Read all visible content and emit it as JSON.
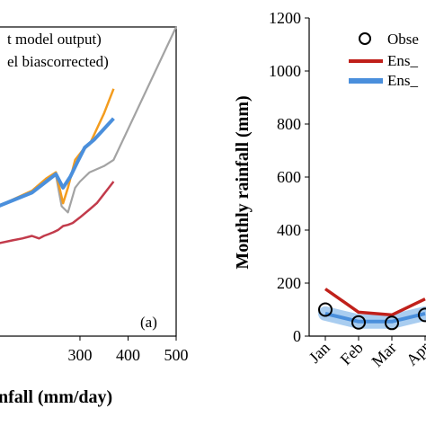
{
  "chart_data": [
    {
      "type": "line",
      "panel_label": "(a)",
      "xlabel": "nfall (mm/day)",
      "xticks": [
        "300",
        "400",
        "500"
      ],
      "xlim": [
        130,
        500
      ],
      "ylim": [
        0,
        500
      ],
      "legend": [
        "t model output)",
        "el biascorrected)"
      ],
      "legend_position": "top-left",
      "series": [
        {
          "color": "#a3a3a3",
          "x": [
            130,
            200,
            230,
            250,
            262,
            275,
            290,
            300,
            320,
            350,
            370,
            500
          ],
          "y": [
            210,
            235,
            255,
            260,
            210,
            200,
            240,
            250,
            265,
            275,
            285,
            500
          ]
        },
        {
          "color": "#f39c1e",
          "x": [
            130,
            200,
            230,
            250,
            265,
            275,
            290,
            305,
            320,
            350,
            370
          ],
          "y": [
            210,
            235,
            255,
            265,
            215,
            240,
            285,
            300,
            310,
            360,
            400
          ]
        },
        {
          "color": "#4a8fdc",
          "x": [
            130,
            200,
            230,
            250,
            265,
            280,
            295,
            310,
            330,
            350,
            370
          ],
          "y": [
            210,
            232,
            250,
            262,
            240,
            258,
            282,
            305,
            318,
            335,
            352
          ]
        },
        {
          "color": "#c23b4b",
          "x": [
            130,
            160,
            180,
            200,
            215,
            225,
            235,
            245,
            255,
            265,
            275,
            285,
            300,
            320,
            335,
            350,
            360,
            370
          ],
          "y": [
            150,
            155,
            158,
            162,
            158,
            162,
            165,
            168,
            172,
            178,
            180,
            183,
            192,
            205,
            215,
            230,
            240,
            250
          ]
        }
      ]
    },
    {
      "type": "line",
      "ylabel": "Monthly rainfall (mm)",
      "yticks": [
        "0",
        "200",
        "400",
        "600",
        "800",
        "1000",
        "1200"
      ],
      "ylim": [
        0,
        1200
      ],
      "categories": [
        "Jan",
        "Feb",
        "Mar",
        "Apr"
      ],
      "legend": [
        "Obse",
        "Ens_",
        "Ens_"
      ],
      "legend_position": "top-right",
      "series": [
        {
          "style": "markers",
          "color": "#000000",
          "values": [
            100,
            52,
            50,
            80
          ]
        },
        {
          "style": "line",
          "color": "#c0201a",
          "values": [
            178,
            90,
            80,
            140
          ]
        },
        {
          "style": "line-band",
          "color": "#4a8fdc",
          "values": [
            85,
            55,
            55,
            85
          ]
        }
      ]
    }
  ]
}
